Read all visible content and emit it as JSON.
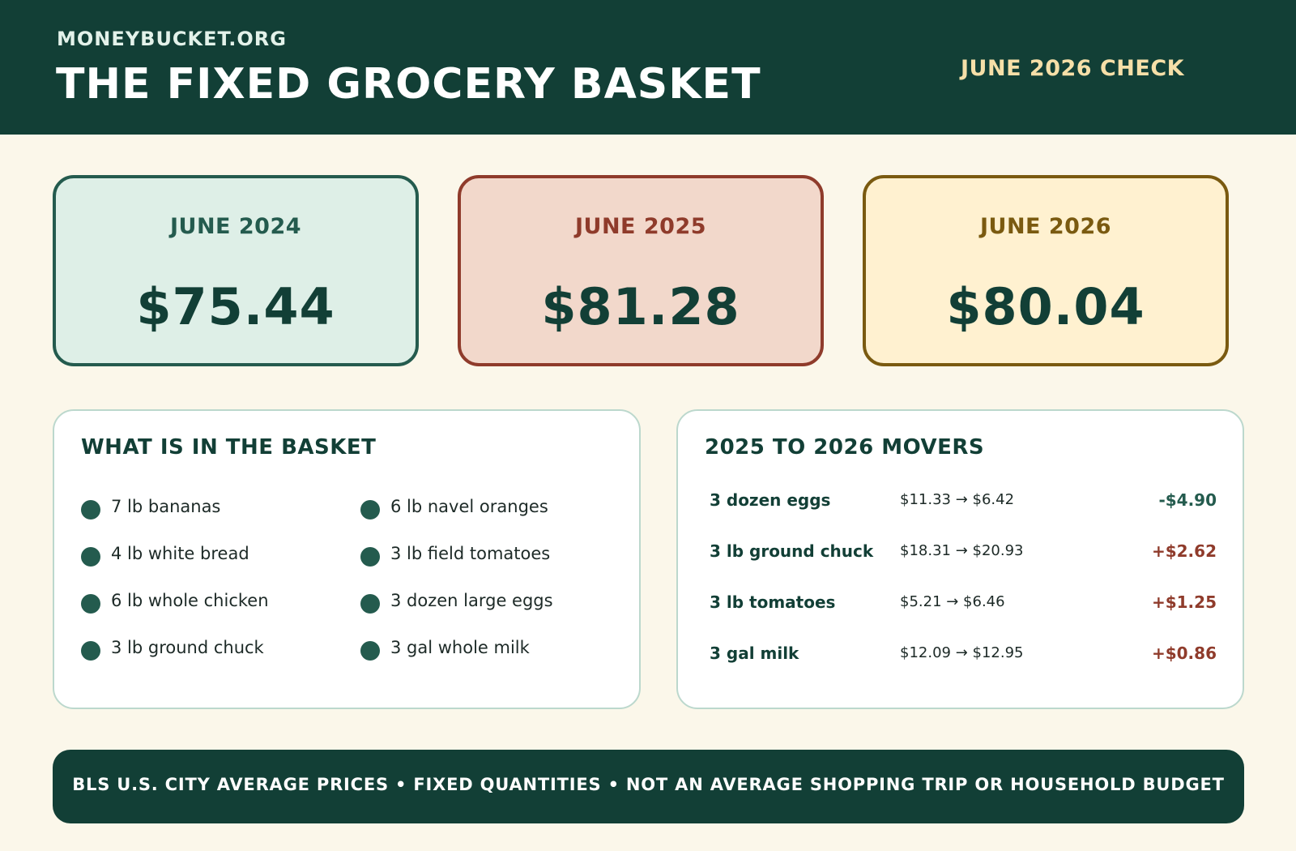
{
  "header": {
    "site_name": "MONEYBUCKET.ORG",
    "title": "THE FIXED GROCERY BASKET",
    "check_label": "JUNE 2026 CHECK"
  },
  "price_cards": [
    {
      "date": "JUNE 2024",
      "price": "$75.44"
    },
    {
      "date": "JUNE 2025",
      "price": "$81.28"
    },
    {
      "date": "JUNE 2026",
      "price": "$80.04"
    }
  ],
  "basket": {
    "title": "WHAT IS IN THE BASKET",
    "items": [
      "7 lb bananas",
      "4 lb white bread",
      "6 lb whole chicken",
      "3 lb ground chuck",
      "6 lb navel oranges",
      "3 lb field tomatoes",
      "3 dozen large eggs",
      "3 gal whole milk"
    ]
  },
  "movers": {
    "title": "2025 TO 2026 MOVERS",
    "rows": [
      {
        "name": "3 dozen eggs",
        "range": "$11.33 → $6.42",
        "change": "-$4.90",
        "direction": "down"
      },
      {
        "name": "3 lb ground chuck",
        "range": "$18.31 → $20.93",
        "change": "+$2.62",
        "direction": "up"
      },
      {
        "name": "3 lb tomatoes",
        "range": "$5.21 → $6.46",
        "change": "+$1.25",
        "direction": "up"
      },
      {
        "name": "3 gal milk",
        "range": "$12.09 → $12.95",
        "change": "+$0.86",
        "direction": "up"
      }
    ]
  },
  "footer": {
    "text": "BLS U.S. CITY AVERAGE PRICES • FIXED QUANTITIES • NOT AN AVERAGE SHOPPING TRIP OR HOUSEHOLD BUDGET"
  },
  "colors": {
    "header_bg": "#123f36",
    "page_bg": "#fbf7ea",
    "card_2024": "#deefe7",
    "card_2025": "#f2d8cb",
    "card_2026": "#fff1d0",
    "increase": "#8f3b2b",
    "decrease": "#245b4e"
  }
}
